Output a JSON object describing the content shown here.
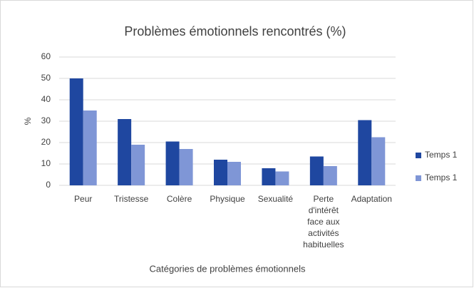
{
  "chart_data": {
    "type": "bar",
    "title": "Problèmes émotionnels rencontrés (%)",
    "x_label": "Catégories de problèmes émotionnels",
    "y_label": "%",
    "categories": [
      "Peur",
      "Tristesse",
      "Colère",
      "Physique",
      "Sexualité",
      "Perte d'intérêt face aux activités habituelles",
      "Adaptation"
    ],
    "series": [
      {
        "name": "Temps 1",
        "color": "#1f47a0",
        "values": [
          50,
          31,
          20.5,
          12,
          8,
          13.5,
          30.5
        ]
      },
      {
        "name": "Temps 1",
        "color": "#7f96d6",
        "values": [
          35,
          19,
          17,
          11,
          6.5,
          9,
          22.5
        ]
      }
    ],
    "ylim": [
      0,
      60
    ],
    "yticks": [
      0,
      10,
      20,
      30,
      40,
      50,
      60
    ],
    "grid": true,
    "legend": "right"
  }
}
